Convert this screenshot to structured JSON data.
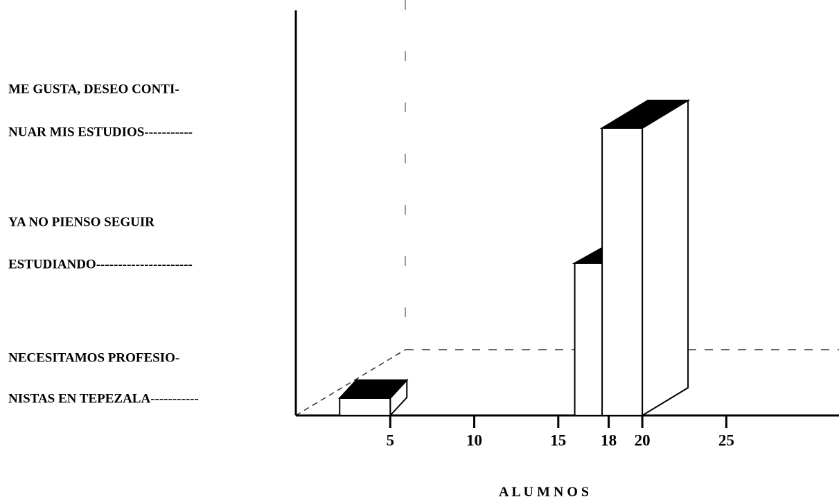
{
  "chart_data": {
    "type": "bar",
    "categories": [
      [
        "ME GUSTA, DESEO CONTI-",
        "NUAR MIS ESTUDIOS-----------"
      ],
      [
        "YA NO PIENSO SEGUIR",
        "ESTUDIANDO----------------------"
      ],
      [
        "NECESITAMOS PROFESIO-",
        "NISTAS EN TEPEZALA-----------"
      ]
    ],
    "values": [
      20,
      18,
      5
    ],
    "color": "#ffffff",
    "xlabel": "A L U M N O S",
    "xlim": [
      0,
      31.5
    ],
    "xticks": [
      5,
      10,
      15,
      18,
      20,
      25
    ]
  }
}
